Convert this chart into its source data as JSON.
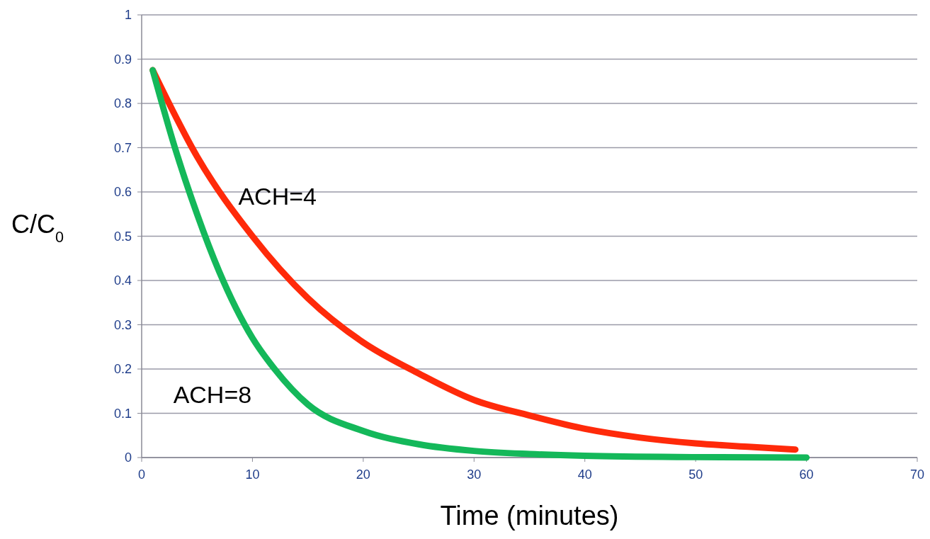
{
  "chart_data": {
    "type": "line",
    "xlabel": "Time (minutes)",
    "ylabel": "C/C$_{0}$",
    "xlim": [
      0,
      70
    ],
    "xticks": [
      0,
      10,
      20,
      30,
      40,
      50,
      60,
      70
    ],
    "ylim": [
      0,
      1
    ],
    "yticks": [
      0,
      0.1,
      0.2,
      0.3,
      0.4,
      0.5,
      0.6,
      0.7,
      0.8,
      0.9,
      1
    ],
    "grid": "y",
    "marker": "none",
    "line_style": "solid",
    "series": [
      {
        "name": "ACH=4",
        "color": "#ff2a0a",
        "x": [
          1,
          5,
          10,
          15,
          20,
          25,
          30,
          35,
          40,
          45,
          50,
          55,
          59
        ],
        "values": [
          0.875,
          0.68,
          0.5,
          0.36,
          0.26,
          0.19,
          0.13,
          0.095,
          0.065,
          0.045,
          0.032,
          0.024,
          0.018
        ]
      },
      {
        "name": "ACH=8",
        "color": "#14b85a",
        "x": [
          1,
          3,
          5,
          7,
          10,
          12,
          15,
          20,
          25,
          30,
          35,
          40,
          50,
          60
        ],
        "values": [
          0.875,
          0.7,
          0.55,
          0.42,
          0.27,
          0.2,
          0.12,
          0.06,
          0.03,
          0.015,
          0.008,
          0.004,
          0.001,
          0
        ]
      }
    ]
  }
}
